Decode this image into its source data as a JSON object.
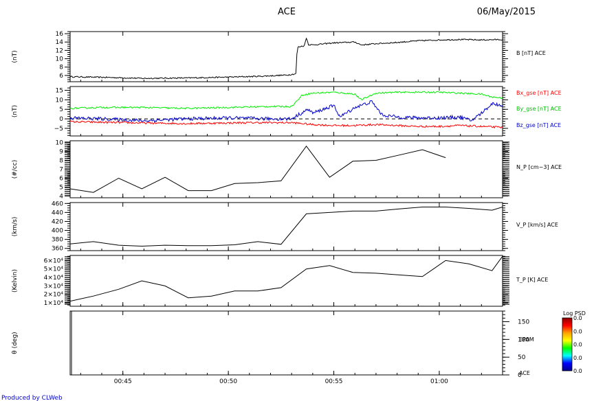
{
  "header": {
    "title": "ACE",
    "date": "06/May/2015"
  },
  "footer": {
    "credit": "Produced by CLWeb"
  },
  "time_axis": {
    "range_min": [
      42.5,
      63.0
    ],
    "tick_labels": [
      "00:45",
      "00:50",
      "00:55",
      "01:00"
    ],
    "tick_minutes": [
      45,
      50,
      55,
      60
    ]
  },
  "colorbar": {
    "title": "Log PSD",
    "tick_labels": [
      "0.0",
      "0.0",
      "0.0",
      "0.0",
      "0.0"
    ],
    "colors": [
      "#8b0000",
      "#ff0000",
      "#ffa500",
      "#ffff00",
      "#00ff00",
      "#00ffff",
      "#0000ff",
      "#00008b"
    ]
  },
  "chart_data": [
    {
      "type": "line",
      "ylabel": "(nT)",
      "ylim": [
        4.5,
        16.5
      ],
      "yticks": [
        6,
        8,
        10,
        12,
        14,
        16
      ],
      "ytick_labels": [
        "6",
        "8",
        "10",
        "12",
        "14",
        "16"
      ],
      "series": [
        {
          "name": "B [nT] ACE",
          "color": "#000000",
          "noise": 0.15,
          "x": [
            42.5,
            44.5,
            46.0,
            48.0,
            50.0,
            51.5,
            52.8,
            53.2,
            53.25,
            53.3,
            53.6,
            53.7,
            53.8,
            54.0,
            55.0,
            56.0,
            56.3,
            57.0,
            58.0,
            59.0,
            60.0,
            61.0,
            62.0,
            63.0
          ],
          "y": [
            5.7,
            5.5,
            5.3,
            5.4,
            5.6,
            5.8,
            6.1,
            6.4,
            11.0,
            12.8,
            13.1,
            15.0,
            13.4,
            13.3,
            13.8,
            14.0,
            13.3,
            13.6,
            13.9,
            14.3,
            14.5,
            14.6,
            14.5,
            14.6
          ]
        }
      ],
      "legend": [
        "B [nT] ACE"
      ]
    },
    {
      "type": "line",
      "ylabel": "(nT)",
      "ylim": [
        -9,
        17
      ],
      "yticks": [
        -5,
        0,
        5,
        10,
        15
      ],
      "ytick_labels": [
        "−5",
        "0",
        "5",
        "10",
        "15"
      ],
      "reference_line": 0,
      "series": [
        {
          "name": "Bx_gse [nT] ACE",
          "color": "#ff0000",
          "noise": 0.5,
          "x": [
            42.5,
            45.0,
            48.0,
            51.0,
            53.0,
            54.0,
            55.0,
            56.0,
            57.0,
            58.0,
            59.0,
            60.0,
            61.0,
            62.0,
            63.0
          ],
          "y": [
            -1.5,
            -2.0,
            -2.5,
            -2.0,
            -2.0,
            -3.0,
            -3.5,
            -3.5,
            -3.0,
            -3.5,
            -4.0,
            -4.0,
            -3.5,
            -4.0,
            -4.5
          ]
        },
        {
          "name": "By_gse [nT] ACE",
          "color": "#00ee00",
          "noise": 0.4,
          "x": [
            42.5,
            44.0,
            46.0,
            48.0,
            50.0,
            52.0,
            53.0,
            53.3,
            53.5,
            54.0,
            55.0,
            56.0,
            56.3,
            57.0,
            58.0,
            59.0,
            60.0,
            61.0,
            62.0,
            62.5,
            63.0
          ],
          "y": [
            5.5,
            6.0,
            6.0,
            5.5,
            6.0,
            6.5,
            6.5,
            10.0,
            12.5,
            13.5,
            14.0,
            13.0,
            10.0,
            13.5,
            14.0,
            14.0,
            14.0,
            13.5,
            13.0,
            11.5,
            11.0
          ]
        },
        {
          "name": "Bz_gse [nT] ACE",
          "color": "#0000cc",
          "noise": 0.9,
          "x": [
            42.5,
            44.0,
            46.0,
            48.0,
            50.0,
            52.0,
            53.0,
            53.3,
            53.8,
            54.0,
            55.0,
            55.3,
            56.0,
            56.8,
            57.3,
            58.0,
            59.0,
            60.0,
            61.0,
            61.5,
            62.0,
            62.5,
            63.0
          ],
          "y": [
            0.5,
            0.0,
            -1.0,
            0.0,
            0.5,
            0.0,
            0.0,
            2.0,
            5.0,
            3.0,
            7.0,
            1.0,
            6.0,
            9.0,
            2.0,
            1.0,
            0.5,
            0.5,
            1.0,
            -1.0,
            3.0,
            8.0,
            7.0
          ]
        }
      ],
      "legend": [
        "Bx_gse [nT] ACE",
        "By_gse [nT] ACE",
        "Bz_gse [nT] ACE"
      ]
    },
    {
      "type": "line",
      "ylabel": "(#/cc)",
      "ylim": [
        3.8,
        10.2
      ],
      "yticks": [
        4,
        5,
        6,
        7,
        8,
        9,
        10
      ],
      "ytick_labels": [
        "4",
        "5",
        "6",
        "7",
        "8",
        "9",
        "10"
      ],
      "series": [
        {
          "name": "N_P [cm^-3] ACE",
          "color": "#000000",
          "noise": 0,
          "x": [
            42.5,
            43.6,
            44.8,
            45.9,
            47.0,
            48.1,
            49.2,
            50.3,
            51.4,
            52.5,
            53.7,
            54.8,
            55.9,
            57.0,
            58.1,
            59.2,
            60.3
          ],
          "y": [
            4.8,
            4.4,
            6.0,
            4.8,
            6.1,
            4.6,
            4.6,
            5.4,
            5.5,
            5.7,
            9.6,
            6.1,
            7.9,
            8.0,
            8.6,
            9.2,
            8.3
          ]
        }
      ],
      "legend": [
        "N_P [cm−3] ACE"
      ]
    },
    {
      "type": "line",
      "ylabel": "(km/s)",
      "ylim": [
        355,
        462
      ],
      "yticks": [
        360,
        380,
        400,
        420,
        440,
        460
      ],
      "ytick_labels": [
        "360",
        "380",
        "400",
        "420",
        "440",
        "460"
      ],
      "series": [
        {
          "name": "V_P [km/s] ACE",
          "color": "#000000",
          "noise": 0,
          "x": [
            42.5,
            43.6,
            44.8,
            45.9,
            47.0,
            48.1,
            49.2,
            50.3,
            51.4,
            52.5,
            53.7,
            54.8,
            55.9,
            57.0,
            58.1,
            59.2,
            60.3,
            61.4,
            62.5,
            63.0
          ],
          "y": [
            370,
            375,
            367,
            365,
            367,
            366,
            366,
            368,
            375,
            369,
            437,
            440,
            443,
            443,
            448,
            452,
            452,
            449,
            445,
            452
          ]
        }
      ],
      "legend": [
        "V_P [km/s] ACE"
      ]
    },
    {
      "type": "line",
      "ylabel": "(Kelvin)",
      "ylim": [
        0.6,
        6.6
      ],
      "yticks": [
        1,
        2,
        3,
        4,
        5,
        6
      ],
      "ytick_labels": [
        "1×10⁴",
        "2×10⁴",
        "3×10⁴",
        "4×10⁴",
        "5×10⁴",
        "6×10⁴"
      ],
      "series": [
        {
          "name": "T_P [K] ACE",
          "color": "#000000",
          "noise": 0,
          "x": [
            42.5,
            43.6,
            44.8,
            45.9,
            47.0,
            48.1,
            49.2,
            50.3,
            51.4,
            52.5,
            53.7,
            54.8,
            55.9,
            57.0,
            58.1,
            59.2,
            60.3,
            61.4,
            62.5,
            63.0
          ],
          "y": [
            1.2,
            1.8,
            2.6,
            3.6,
            3.0,
            1.6,
            1.8,
            2.4,
            2.4,
            2.8,
            5.0,
            5.4,
            4.6,
            4.5,
            4.3,
            4.1,
            6.0,
            5.6,
            4.8,
            6.5
          ]
        }
      ],
      "legend": [
        "T_P [K] ACE"
      ]
    },
    {
      "type": "heatmap",
      "ylabel": "θ (deg)",
      "ylim": [
        0,
        180
      ],
      "right_ticks": [
        0,
        50,
        100,
        150
      ],
      "right_tick_labels": [
        "0",
        "50",
        "100",
        "150"
      ],
      "legend": [
        "EPAM",
        "ACE"
      ]
    }
  ]
}
